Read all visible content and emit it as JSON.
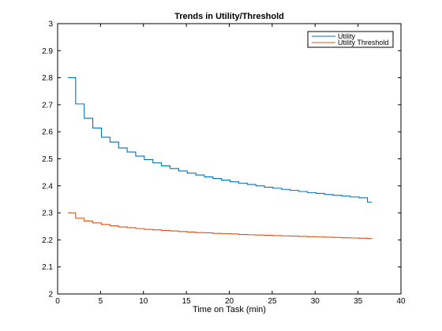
{
  "chart_data": {
    "type": "line",
    "title": "Trends in Utility/Threshold",
    "xlabel": "Time on Task (min)",
    "ylabel": "",
    "xlim": [
      0,
      40
    ],
    "ylim": [
      2,
      3
    ],
    "xticks": [
      0,
      5,
      10,
      15,
      20,
      25,
      30,
      35,
      40
    ],
    "yticks": [
      2,
      2.1,
      2.2,
      2.3,
      2.4,
      2.5,
      2.6,
      2.7,
      2.8,
      2.9,
      3
    ],
    "grid": false,
    "legend_position": "top-right",
    "step": true,
    "series": [
      {
        "name": "Utility",
        "color": "#0072bd",
        "x": [
          1.2,
          2.1,
          3.1,
          4.1,
          5.1,
          6.1,
          7.1,
          8.1,
          9.1,
          10.1,
          11.1,
          12.1,
          13.1,
          14.1,
          15.1,
          16.1,
          17.1,
          18.1,
          19.1,
          20.1,
          21.1,
          22.1,
          23.1,
          24.1,
          25.1,
          26.1,
          27.1,
          28.1,
          29.1,
          30.1,
          31.1,
          32.1,
          33.1,
          34.1,
          35.1,
          36.1,
          36.6
        ],
        "y": [
          2.8,
          2.703,
          2.65,
          2.614,
          2.58,
          2.562,
          2.54,
          2.525,
          2.51,
          2.497,
          2.485,
          2.474,
          2.464,
          2.455,
          2.447,
          2.44,
          2.433,
          2.427,
          2.421,
          2.415,
          2.41,
          2.405,
          2.4,
          2.395,
          2.391,
          2.387,
          2.383,
          2.379,
          2.375,
          2.372,
          2.368,
          2.365,
          2.362,
          2.359,
          2.356,
          2.34,
          2.34
        ]
      },
      {
        "name": "Utility Threshold",
        "color": "#d95319",
        "x": [
          1.2,
          2.1,
          3.1,
          4.1,
          5.1,
          6.1,
          7.1,
          8.1,
          9.1,
          10.1,
          11.1,
          12.1,
          13.1,
          14.1,
          15.1,
          16.1,
          17.1,
          18.1,
          19.1,
          20.1,
          21.1,
          22.1,
          23.1,
          24.1,
          25.1,
          26.1,
          27.1,
          28.1,
          29.1,
          30.1,
          31.1,
          32.1,
          33.1,
          34.1,
          35.1,
          36.1,
          36.6
        ],
        "y": [
          2.3,
          2.28,
          2.27,
          2.263,
          2.257,
          2.252,
          2.248,
          2.245,
          2.242,
          2.239,
          2.237,
          2.235,
          2.233,
          2.231,
          2.229,
          2.227,
          2.226,
          2.224,
          2.223,
          2.222,
          2.22,
          2.219,
          2.218,
          2.217,
          2.216,
          2.215,
          2.214,
          2.213,
          2.212,
          2.211,
          2.21,
          2.209,
          2.208,
          2.207,
          2.206,
          2.205,
          2.204
        ]
      }
    ]
  }
}
